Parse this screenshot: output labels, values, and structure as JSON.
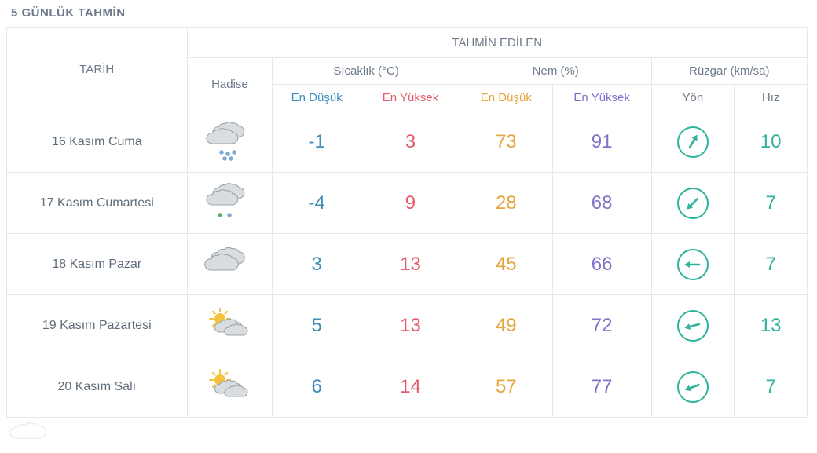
{
  "title": "5 GÜNLÜK TAHMİN",
  "colors": {
    "text": "#6c7a89",
    "border": "#e4e8eb",
    "temp_low": "#3b8fb8",
    "temp_high": "#e55a6a",
    "hum_low": "#e6a43c",
    "hum_high": "#7e72c9",
    "wind": "#2fb39b",
    "sub_low": "#3b8fb8",
    "sub_high": "#e55a6a",
    "sub_humlow": "#e6a43c",
    "sub_humhigh": "#7e72c9",
    "sub_neutral": "#6c7a89",
    "cloud_fill": "#d9dde0",
    "cloud_stroke": "#9aa4ab",
    "snow": "#7aa8d4",
    "rain": "#4fb36a",
    "sun": "#f2c23d"
  },
  "headers": {
    "tarih": "TARİH",
    "tahmin": "TAHMİN EDİLEN",
    "hadise": "Hadise",
    "sicaklik": "Sıcaklık (°C)",
    "nem": "Nem (%)",
    "ruzgar": "Rüzgar (km/sa)",
    "en_dusuk": "En Düşük",
    "en_yuksek": "En Yüksek",
    "yon": "Yön",
    "hiz": "Hız"
  },
  "column_widths": {
    "tarih": 228,
    "hadise": 108,
    "temp_low": 112,
    "temp_high": 125,
    "hum_low": 117,
    "hum_high": 125,
    "wind_dir": 105,
    "wind_speed": 92
  },
  "rows": [
    {
      "date": "16 Kasım Cuma",
      "icon": "snow",
      "temp_low": "-1",
      "temp_high": "3",
      "hum_low": "73",
      "hum_high": "91",
      "wind_dir_deg": 30,
      "wind_speed": "10"
    },
    {
      "date": "17 Kasım Cumartesi",
      "icon": "rain-snow",
      "temp_low": "-4",
      "temp_high": "9",
      "hum_low": "28",
      "hum_high": "68",
      "wind_dir_deg": 225,
      "wind_speed": "7"
    },
    {
      "date": "18 Kasım Pazar",
      "icon": "cloudy",
      "temp_low": "3",
      "temp_high": "13",
      "hum_low": "45",
      "hum_high": "66",
      "wind_dir_deg": 270,
      "wind_speed": "7"
    },
    {
      "date": "19 Kasım Pazartesi",
      "icon": "sun-cloud",
      "temp_low": "5",
      "temp_high": "13",
      "hum_low": "49",
      "hum_high": "72",
      "wind_dir_deg": 255,
      "wind_speed": "13"
    },
    {
      "date": "20 Kasım Salı",
      "icon": "sun-cloud",
      "temp_low": "6",
      "temp_high": "14",
      "hum_low": "57",
      "hum_high": "77",
      "wind_dir_deg": 250,
      "wind_speed": "7"
    }
  ]
}
